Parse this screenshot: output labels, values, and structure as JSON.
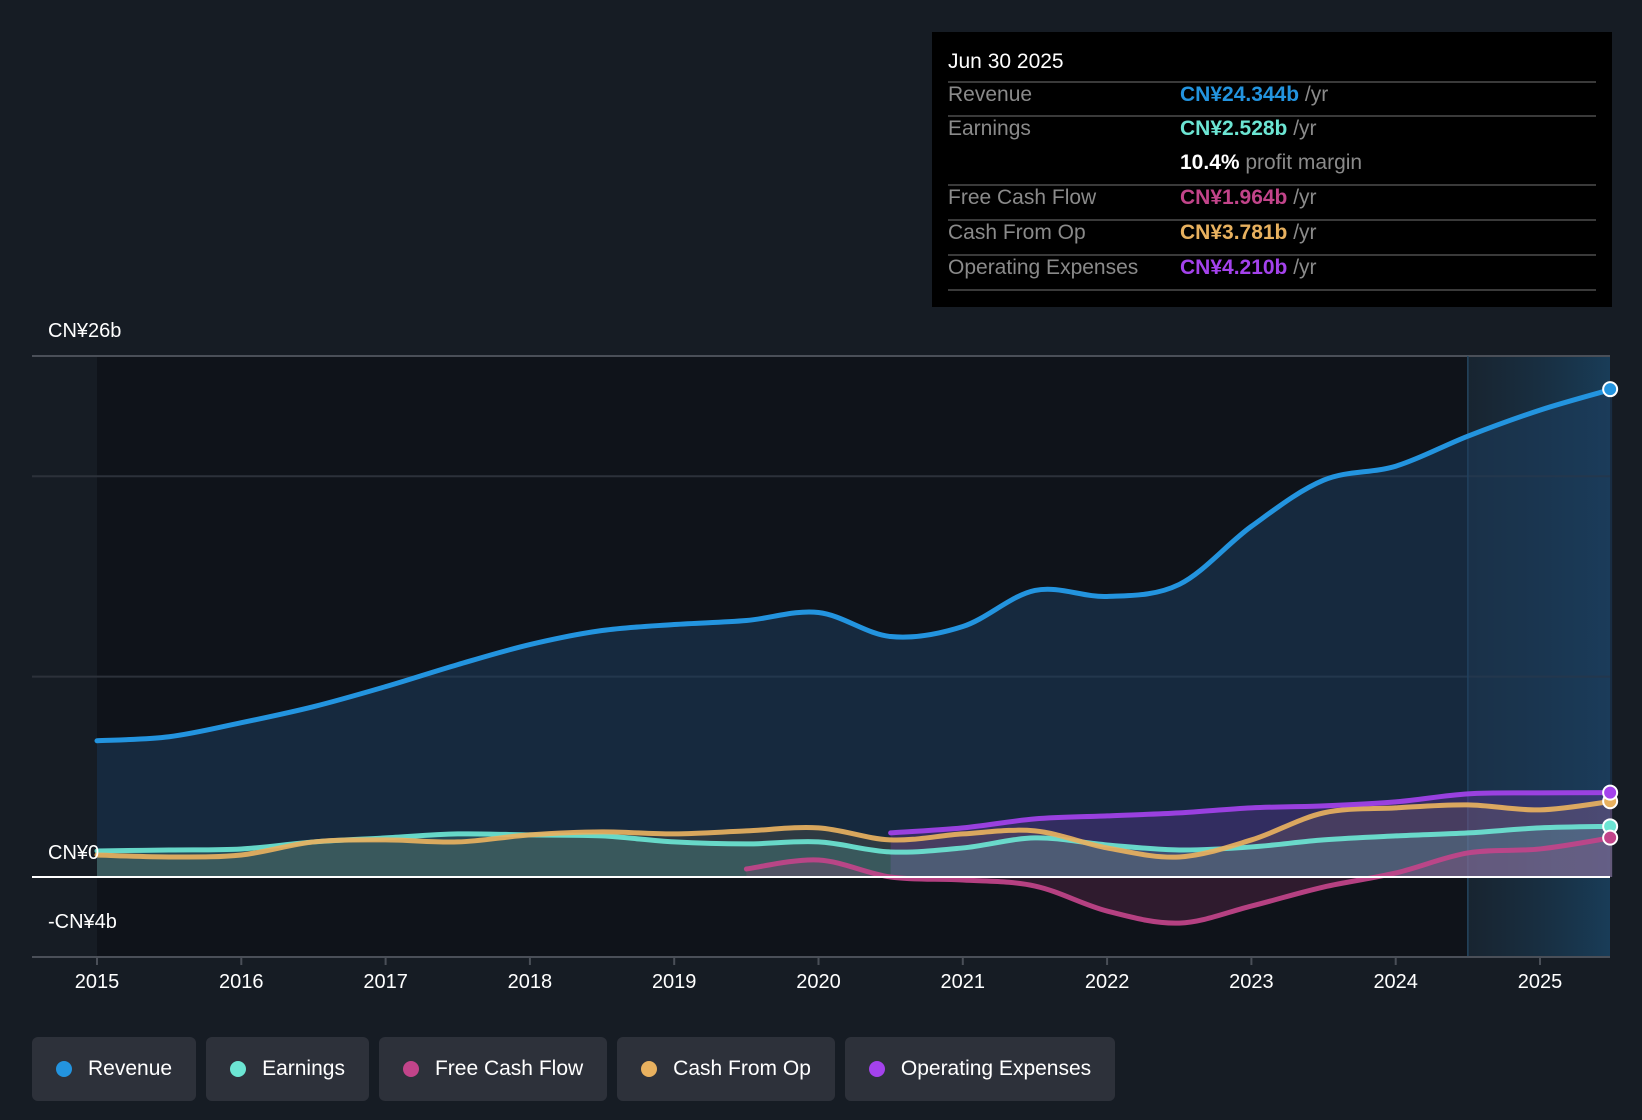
{
  "tooltip": {
    "date": "Jun 30 2025",
    "rows": [
      {
        "label": "Revenue",
        "value": "CN¥24.344b",
        "unit": " /yr",
        "color": "#2394df"
      },
      {
        "label": "Earnings",
        "value": "CN¥2.528b",
        "unit": " /yr",
        "color": "#6ce5d3"
      },
      {
        "label": "",
        "value": "10.4%",
        "unit": " profit margin",
        "color": "#ffffff"
      },
      {
        "label": "Free Cash Flow",
        "value": "CN¥1.964b",
        "unit": " /yr",
        "color": "#c2448a"
      },
      {
        "label": "Cash From Op",
        "value": "CN¥3.781b",
        "unit": " /yr",
        "color": "#e8b15f"
      },
      {
        "label": "Operating Expenses",
        "value": "CN¥4.210b",
        "unit": " /yr",
        "color": "#a442ec"
      }
    ]
  },
  "legend": [
    {
      "label": "Revenue",
      "color": "#2394df"
    },
    {
      "label": "Earnings",
      "color": "#6ce5d3"
    },
    {
      "label": "Free Cash Flow",
      "color": "#c2448a"
    },
    {
      "label": "Cash From Op",
      "color": "#e8b15f"
    },
    {
      "label": "Operating Expenses",
      "color": "#a442ec"
    }
  ],
  "chart_data": {
    "type": "area",
    "title": "",
    "xlabel": "",
    "ylabel": "",
    "currency": "CN¥",
    "ylim": [
      -4,
      26
    ],
    "xlim": [
      2014.55,
      2025.5
    ],
    "y_tick_labels": [
      {
        "value": 26,
        "label": "CN¥26b"
      },
      {
        "value": 0,
        "label": "CN¥0"
      },
      {
        "value": -4,
        "label": "-CN¥4b"
      }
    ],
    "gridlines": [
      10,
      20,
      26
    ],
    "x_tick_labels": [
      "2015",
      "2016",
      "2017",
      "2018",
      "2019",
      "2020",
      "2021",
      "2022",
      "2023",
      "2024",
      "2025"
    ],
    "x_ticks": [
      2015,
      2016,
      2017,
      2018,
      2019,
      2020,
      2021,
      2022,
      2023,
      2024,
      2025
    ],
    "forecast_highlight_start": 2024.5,
    "legend_position": "bottom",
    "series": [
      {
        "name": "Revenue",
        "color": "#2394df",
        "x": [
          2015,
          2015.5,
          2016,
          2016.5,
          2017,
          2017.5,
          2018,
          2018.5,
          2019,
          2019.5,
          2020,
          2020.5,
          2021,
          2021.5,
          2022,
          2022.5,
          2023,
          2023.5,
          2024,
          2024.5,
          2025,
          2025.5
        ],
        "values": [
          6.8,
          7.0,
          7.7,
          8.5,
          9.5,
          10.6,
          11.6,
          12.3,
          12.6,
          12.8,
          13.2,
          12.0,
          12.5,
          14.3,
          14.0,
          14.6,
          17.5,
          19.8,
          20.5,
          22.0,
          23.3,
          24.344
        ]
      },
      {
        "name": "Earnings",
        "color": "#6ce5d3",
        "x": [
          2015,
          2015.5,
          2016,
          2016.5,
          2017,
          2017.5,
          2018,
          2018.5,
          2019,
          2019.5,
          2020,
          2020.5,
          2021,
          2021.5,
          2022,
          2022.5,
          2023,
          2023.5,
          2024,
          2024.5,
          2025,
          2025.5
        ],
        "values": [
          1.3,
          1.35,
          1.4,
          1.75,
          1.95,
          2.15,
          2.1,
          2.05,
          1.75,
          1.65,
          1.75,
          1.25,
          1.45,
          1.95,
          1.6,
          1.35,
          1.5,
          1.85,
          2.05,
          2.2,
          2.45,
          2.528
        ]
      },
      {
        "name": "Free Cash Flow",
        "color": "#c2448a",
        "x": [
          2019.5,
          2020,
          2020.5,
          2021,
          2021.5,
          2022,
          2022.5,
          2023,
          2023.5,
          2024,
          2024.5,
          2025,
          2025.5
        ],
        "values": [
          0.4,
          0.85,
          0.0,
          -0.15,
          -0.45,
          -1.7,
          -2.3,
          -1.45,
          -0.5,
          0.2,
          1.2,
          1.4,
          1.964
        ]
      },
      {
        "name": "Cash From Op",
        "color": "#e8b15f",
        "x": [
          2015,
          2015.5,
          2016,
          2016.5,
          2017,
          2017.5,
          2018,
          2018.5,
          2019,
          2019.5,
          2020,
          2020.5,
          2021,
          2021.5,
          2022,
          2022.5,
          2023,
          2023.5,
          2024,
          2024.5,
          2025,
          2025.5
        ],
        "values": [
          1.1,
          1.0,
          1.1,
          1.75,
          1.85,
          1.75,
          2.1,
          2.25,
          2.15,
          2.3,
          2.45,
          1.85,
          2.15,
          2.3,
          1.45,
          1.0,
          1.85,
          3.2,
          3.45,
          3.6,
          3.35,
          3.781
        ]
      },
      {
        "name": "Operating Expenses",
        "color": "#a442ec",
        "x": [
          2020.5,
          2021,
          2021.5,
          2022,
          2022.5,
          2023,
          2023.5,
          2024,
          2024.5,
          2025,
          2025.5
        ],
        "values": [
          2.2,
          2.45,
          2.9,
          3.05,
          3.2,
          3.45,
          3.55,
          3.75,
          4.15,
          4.2,
          4.21
        ]
      }
    ]
  }
}
